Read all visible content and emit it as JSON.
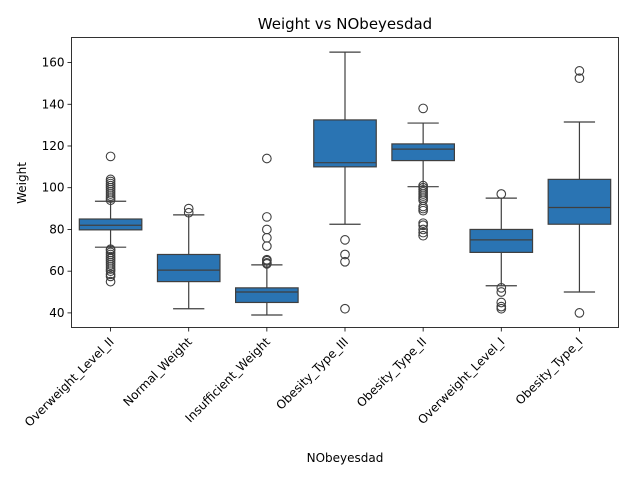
{
  "chart_data": {
    "type": "box",
    "title": "Weight vs NObeyesdad",
    "xlabel": "NObeyesdad",
    "ylabel": "Weight",
    "ylim": [
      33,
      172
    ],
    "yticks": [
      40,
      60,
      80,
      100,
      120,
      140,
      160
    ],
    "grid": false,
    "legend": "none",
    "box_color": "#2a74b3",
    "categories": [
      "Overweight_Level_II",
      "Normal_Weight",
      "Insufficient_Weight",
      "Obesity_Type_III",
      "Obesity_Type_II",
      "Overweight_Level_I",
      "Obesity_Type_I"
    ],
    "boxes": [
      {
        "q1": 79.8,
        "median": 82,
        "q3": 85,
        "whisker_low": 71.5,
        "whisker_high": 93.5,
        "outliers": [
          55,
          57.5,
          58.5,
          60,
          61,
          62,
          63,
          64,
          65,
          66,
          67,
          68,
          69,
          70,
          70.5,
          94,
          95,
          96,
          97,
          98,
          99,
          100,
          101,
          102,
          103,
          104,
          115
        ]
      },
      {
        "q1": 55,
        "median": 60.5,
        "q3": 68,
        "whisker_low": 42,
        "whisker_high": 87,
        "outliers": [
          88,
          90
        ]
      },
      {
        "q1": 45,
        "median": 50,
        "q3": 52,
        "whisker_low": 39,
        "whisker_high": 63,
        "outliers": [
          63.5,
          64,
          65,
          65.5,
          72,
          76,
          80,
          86,
          114
        ]
      },
      {
        "q1": 110,
        "median": 112,
        "q3": 132.5,
        "whisker_low": 82.5,
        "whisker_high": 165,
        "outliers": [
          42,
          64.5,
          68,
          75
        ]
      },
      {
        "q1": 113,
        "median": 118.5,
        "q3": 121,
        "whisker_low": 100.5,
        "whisker_high": 131,
        "outliers": [
          77,
          78.5,
          80,
          82,
          83,
          89,
          90,
          91,
          94,
          95,
          96,
          97,
          98,
          99,
          100,
          101,
          138
        ]
      },
      {
        "q1": 69,
        "median": 75,
        "q3": 80,
        "whisker_low": 53,
        "whisker_high": 95,
        "outliers": [
          42,
          43,
          45,
          50,
          52,
          97
        ]
      },
      {
        "q1": 82.5,
        "median": 90.5,
        "q3": 104,
        "whisker_low": 50,
        "whisker_high": 131.5,
        "outliers": [
          40,
          152.5,
          156
        ]
      }
    ]
  }
}
